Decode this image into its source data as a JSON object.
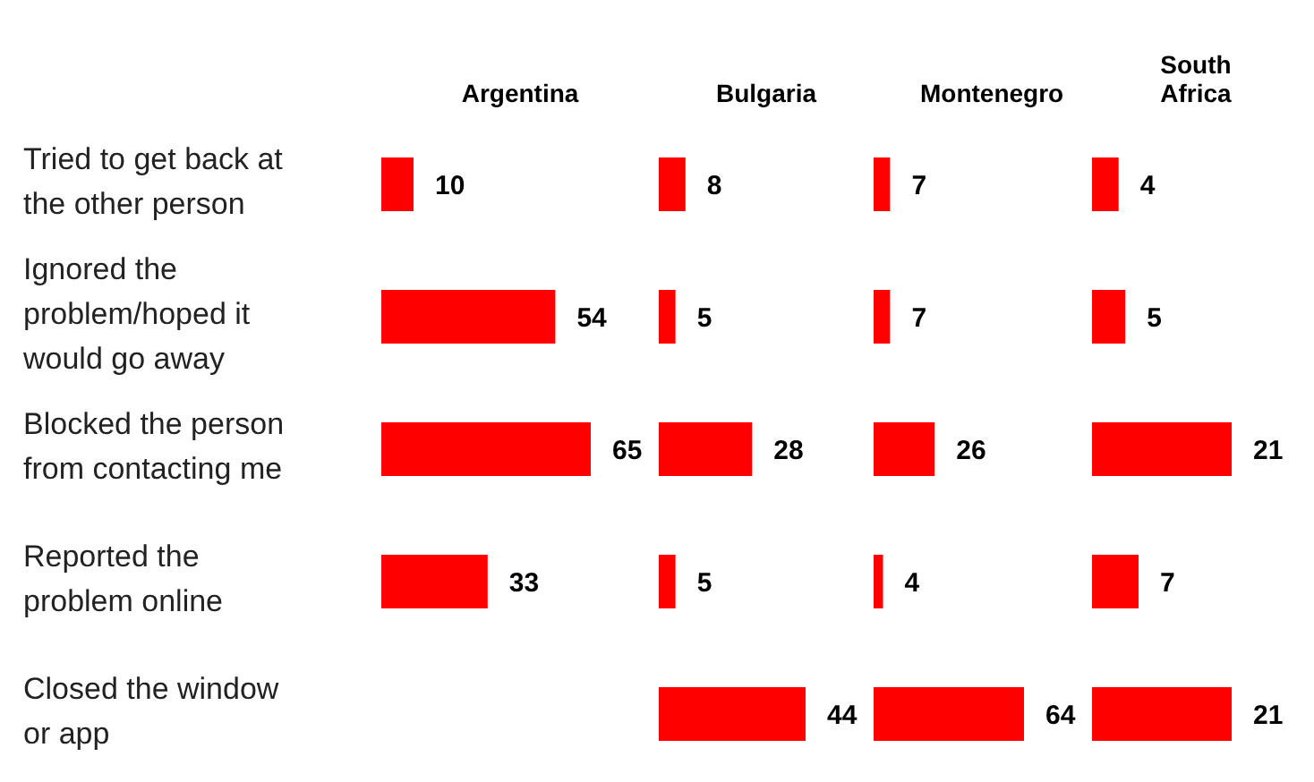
{
  "chart_data": [
    {
      "type": "bar",
      "orientation": "horizontal",
      "title": "Argentina",
      "categories": [
        "Tried to get back at the other person",
        "Ignored the problem/hoped it would go away",
        "Blocked the person from contacting me",
        "Reported the problem online",
        "Closed the window or app"
      ],
      "values": [
        10,
        54,
        65,
        33,
        null
      ],
      "color": "#ff0000",
      "data_labels": true,
      "tick_labels": "y"
    },
    {
      "type": "bar",
      "orientation": "horizontal",
      "title": "Bulgaria",
      "categories": [
        null,
        null,
        null,
        null,
        null
      ],
      "values": [
        8,
        5,
        28,
        5,
        44
      ],
      "color": "#ff0000",
      "data_labels": true,
      "tick_labels": false
    },
    {
      "type": "bar",
      "orientation": "horizontal",
      "title": "Montenegro",
      "categories": [
        null,
        null,
        null,
        null,
        null
      ],
      "values": [
        7,
        7,
        26,
        4,
        64
      ],
      "color": "#ff0000",
      "data_labels": true,
      "tick_labels": false
    },
    {
      "type": "bar",
      "orientation": "horizontal",
      "title": "South Africa",
      "categories": [
        null,
        null,
        null,
        null,
        null
      ],
      "values": [
        4,
        5,
        21,
        7,
        21
      ],
      "color": "#ff0000",
      "data_labels": true,
      "tick_labels": false
    }
  ]
}
